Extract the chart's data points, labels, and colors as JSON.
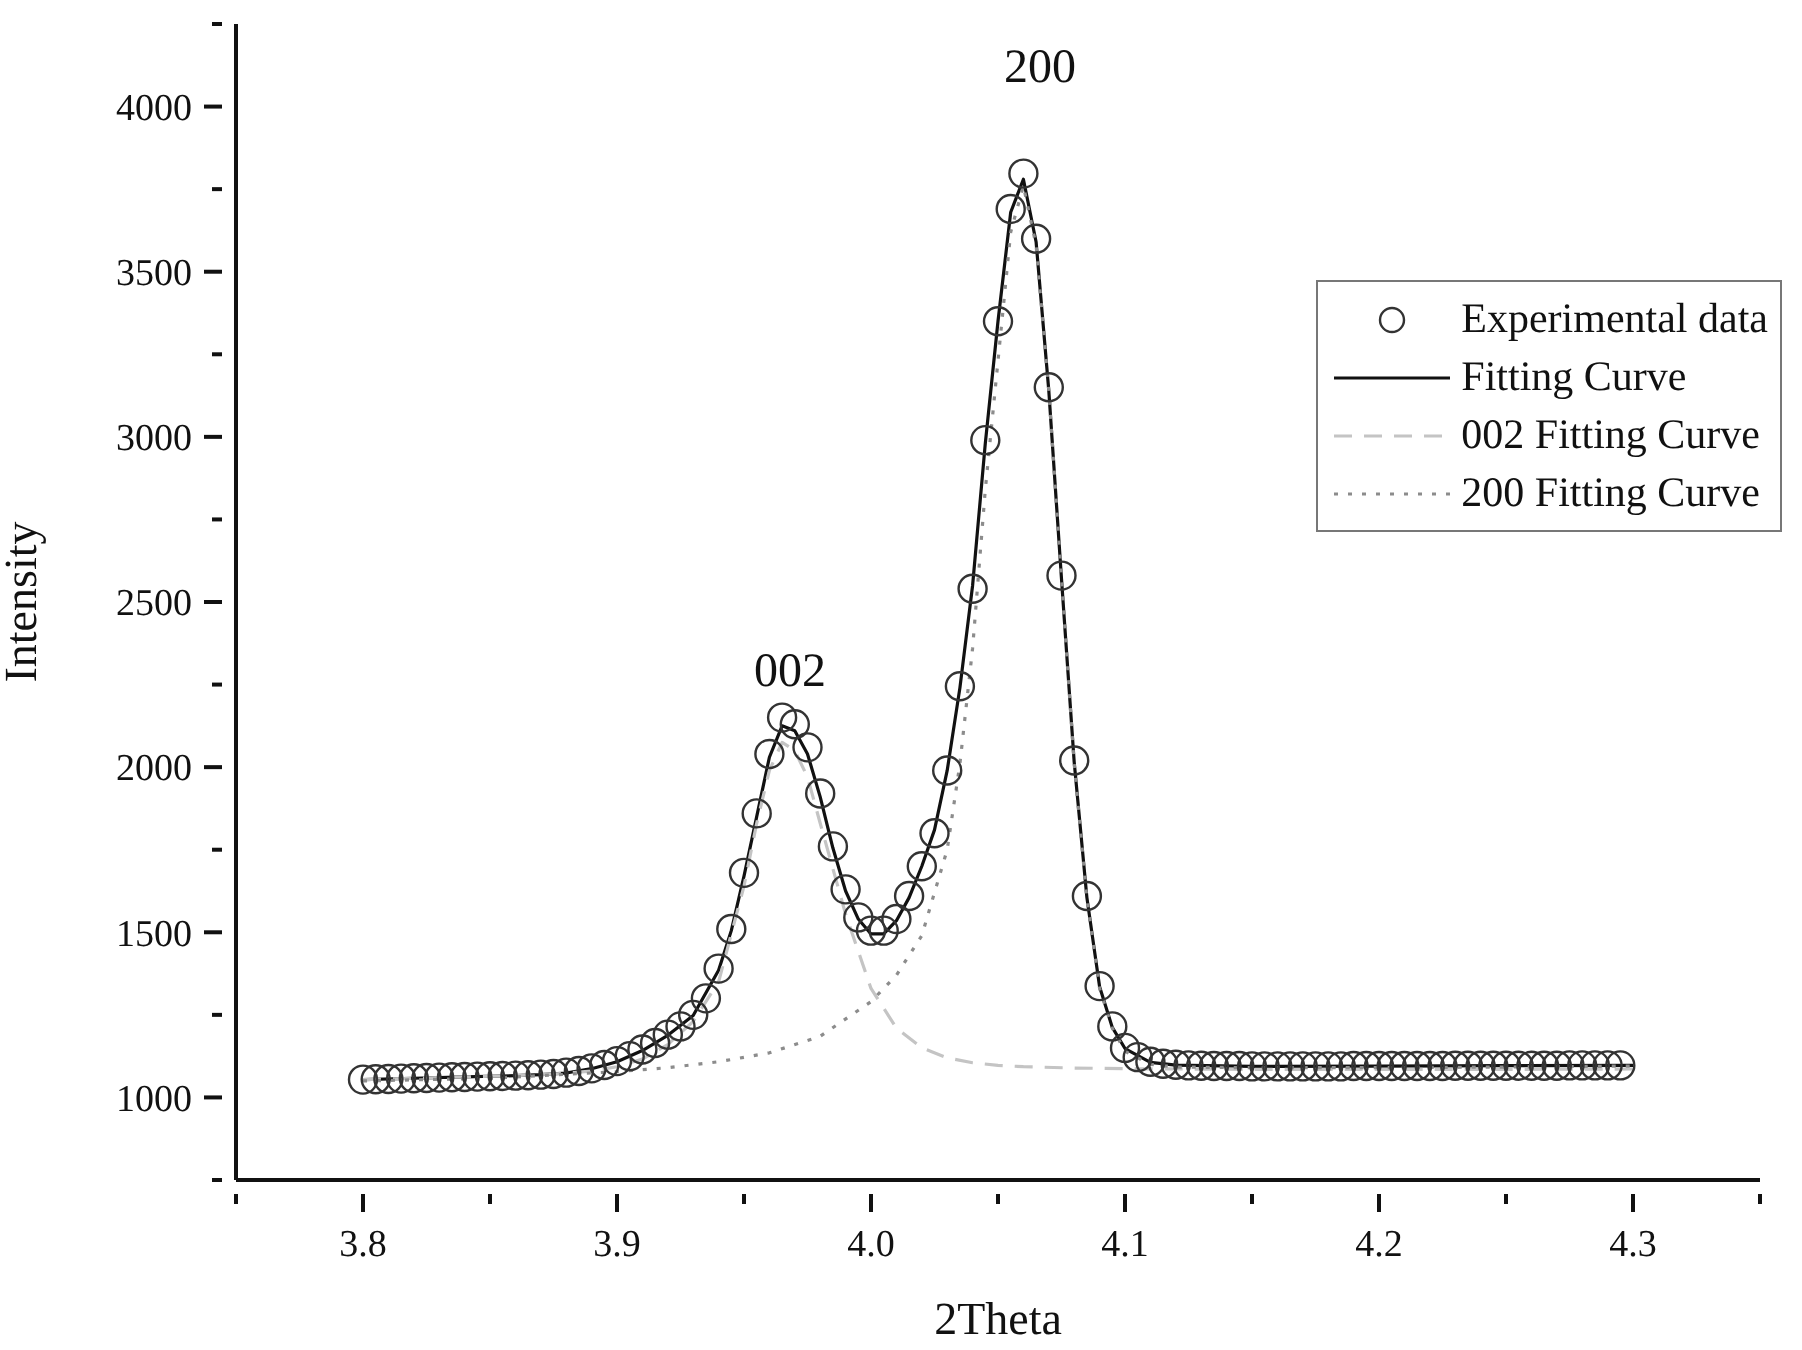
{
  "chart_data": {
    "type": "line",
    "xlabel": "2Theta",
    "ylabel": "Intensity",
    "xlim": [
      3.75,
      4.35
    ],
    "xticks": [
      {
        "value": 3.75,
        "label": null
      },
      3.8,
      {
        "value": 3.85,
        "label": null
      },
      3.9,
      {
        "value": 3.95,
        "label": null
      },
      {
        "value": 4,
        "label": "4.0"
      },
      {
        "value": 4.05,
        "label": null
      },
      4.1,
      {
        "value": 4.15,
        "label": null
      },
      4.2,
      {
        "value": 4.25,
        "label": null
      },
      4.3,
      {
        "value": 4.35,
        "label": null
      }
    ],
    "ylim": [
      750,
      4250
    ],
    "yticks": [
      {
        "value": 750,
        "label": null
      },
      1000,
      {
        "value": 1250,
        "label": null
      },
      1500,
      {
        "value": 1750,
        "label": null
      },
      2000,
      {
        "value": 2250,
        "label": null
      },
      2500,
      {
        "value": 2750,
        "label": null
      },
      3000,
      {
        "value": 3250,
        "label": null
      },
      3500,
      {
        "value": 3750,
        "label": null
      },
      4000,
      {
        "value": 4250,
        "label": null
      }
    ],
    "grid": false,
    "legend": "top right",
    "annotations": [
      "002",
      "200"
    ],
    "series": [
      {
        "name": "Experimental data",
        "type": "scatter",
        "marker": "circle",
        "color": "#333333",
        "x": [
          3.8,
          3.805,
          3.81,
          3.815,
          3.82,
          3.825,
          3.83,
          3.835,
          3.84,
          3.845,
          3.85,
          3.855,
          3.86,
          3.865,
          3.87,
          3.875,
          3.88,
          3.885,
          3.89,
          3.895,
          3.9,
          3.905,
          3.91,
          3.915,
          3.92,
          3.925,
          3.93,
          3.935,
          3.94,
          3.945,
          3.95,
          3.955,
          3.96,
          3.965,
          3.97,
          3.975,
          3.98,
          3.985,
          3.99,
          3.995,
          4,
          4.005,
          4.01,
          4.015,
          4.02,
          4.025,
          4.03,
          4.035,
          4.04,
          4.045,
          4.05,
          4.055,
          4.06,
          4.065,
          4.07,
          4.075,
          4.08,
          4.085,
          4.09,
          4.095,
          4.1,
          4.105,
          4.11,
          4.115,
          4.12,
          4.125,
          4.13,
          4.135,
          4.14,
          4.145,
          4.15,
          4.155,
          4.16,
          4.165,
          4.17,
          4.175,
          4.18,
          4.185,
          4.19,
          4.195,
          4.2,
          4.205,
          4.21,
          4.215,
          4.22,
          4.225,
          4.23,
          4.235,
          4.24,
          4.245,
          4.25,
          4.255,
          4.26,
          4.265,
          4.27,
          4.275,
          4.28,
          4.285,
          4.29,
          4.295
        ],
        "values": [
          1054,
          1055,
          1056,
          1057,
          1058,
          1059,
          1060,
          1061,
          1062,
          1063,
          1064,
          1065,
          1066,
          1067,
          1069,
          1071,
          1075,
          1080,
          1088,
          1098,
          1110,
          1125,
          1145,
          1165,
          1190,
          1215,
          1250,
          1300,
          1390,
          1510,
          1680,
          1860,
          2040,
          2150,
          2130,
          2060,
          1920,
          1760,
          1630,
          1545,
          1505,
          1505,
          1540,
          1610,
          1700,
          1800,
          1990,
          2245,
          2540,
          2990,
          3350,
          3690,
          3797,
          3600,
          3150,
          2580,
          2020,
          1610,
          1337,
          1215,
          1150,
          1122,
          1108,
          1102,
          1099,
          1097,
          1096,
          1095,
          1095,
          1095,
          1094,
          1094,
          1094,
          1094,
          1094,
          1094,
          1094,
          1094,
          1095,
          1095,
          1095,
          1095,
          1095,
          1095,
          1095,
          1095,
          1096,
          1096,
          1096,
          1096,
          1096,
          1096,
          1096,
          1096,
          1096,
          1097,
          1097,
          1097,
          1097,
          1097
        ]
      },
      {
        "name": "Fitting Curve",
        "marker": "none",
        "line_style": "solid",
        "color": "#111111",
        "x": [
          3.8,
          3.82,
          3.84,
          3.86,
          3.87,
          3.88,
          3.89,
          3.9,
          3.91,
          3.92,
          3.93,
          3.94,
          3.945,
          3.95,
          3.955,
          3.96,
          3.965,
          3.97,
          3.975,
          3.98,
          3.985,
          3.99,
          3.995,
          4,
          4.005,
          4.01,
          4.015,
          4.02,
          4.025,
          4.03,
          4.035,
          4.04,
          4.045,
          4.05,
          4.055,
          4.06,
          4.065,
          4.07,
          4.075,
          4.08,
          4.085,
          4.09,
          4.095,
          4.1,
          4.11,
          4.12,
          4.15,
          4.2,
          4.25,
          4.3
        ],
        "values": [
          1054,
          1058,
          1062,
          1066,
          1069,
          1074,
          1087,
          1108,
          1142,
          1188,
          1248,
          1385,
          1505,
          1670,
          1850,
          2030,
          2125,
          2110,
          2040,
          1910,
          1755,
          1625,
          1540,
          1495,
          1495,
          1535,
          1605,
          1700,
          1810,
          1990,
          2240,
          2550,
          2980,
          3350,
          3680,
          3780,
          3590,
          3140,
          2570,
          2015,
          1605,
          1335,
          1212,
          1148,
          1106,
          1098,
          1094,
          1095,
          1096,
          1097
        ]
      },
      {
        "name": "002 Fitting Curve",
        "marker": "none",
        "line_style": "dashed",
        "color": "#c4c4c4",
        "x": [
          3.8,
          3.82,
          3.84,
          3.86,
          3.88,
          3.89,
          3.9,
          3.91,
          3.92,
          3.93,
          3.94,
          3.95,
          3.955,
          3.96,
          3.965,
          3.97,
          3.975,
          3.98,
          3.99,
          4,
          4.01,
          4.02,
          4.03,
          4.04,
          4.05,
          4.06,
          4.08,
          4.1,
          4.15,
          4.2,
          4.25,
          4.3
        ],
        "values": [
          1054,
          1058,
          1062,
          1066,
          1073,
          1080,
          1093,
          1116,
          1160,
          1230,
          1350,
          1640,
          1830,
          1990,
          2075,
          2050,
          1970,
          1830,
          1555,
          1330,
          1210,
          1150,
          1120,
          1105,
          1097,
          1093,
          1089,
          1087,
          1085,
          1085,
          1085,
          1086
        ]
      },
      {
        "name": "200 Fitting Curve",
        "marker": "none",
        "line_style": "dotted",
        "color": "#8c8c8c",
        "x": [
          3.8,
          3.85,
          3.9,
          3.92,
          3.94,
          3.96,
          3.98,
          4,
          4.01,
          4.02,
          4.03,
          4.035,
          4.04,
          4.045,
          4.05,
          4.055,
          4.06,
          4.065,
          4.07,
          4.075,
          4.08,
          4.085,
          4.09,
          4.095,
          4.1,
          4.11,
          4.12,
          4.15,
          4.2,
          4.25,
          4.3
        ],
        "values": [
          1050,
          1058,
          1078,
          1090,
          1108,
          1135,
          1185,
          1290,
          1370,
          1490,
          1750,
          2010,
          2360,
          2840,
          3230,
          3620,
          3760,
          3580,
          3140,
          2570,
          2010,
          1600,
          1330,
          1210,
          1140,
          1100,
          1092,
          1090,
          1090,
          1092,
          1095
        ]
      }
    ]
  }
}
